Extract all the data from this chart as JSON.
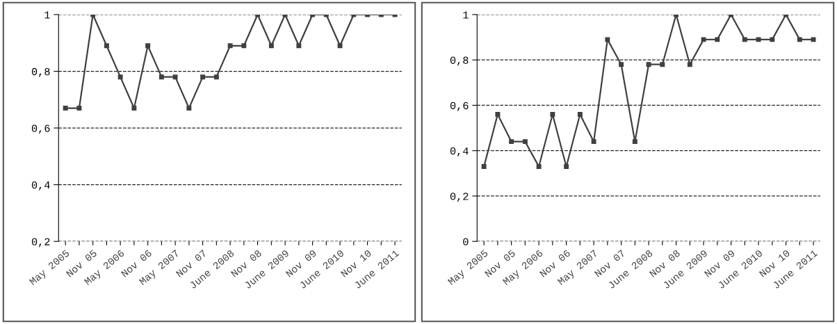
{
  "chart_data": [
    {
      "type": "line",
      "categories": [
        "May 2005",
        null,
        "Nov 05",
        null,
        "May 2006",
        null,
        "Nov 06",
        null,
        "May 2007",
        null,
        "Nov 07",
        null,
        "June 2008",
        null,
        "Nov 08",
        null,
        "June 2009",
        null,
        "Nov 09",
        null,
        "June 2010",
        null,
        "Nov 10",
        null,
        "June 2011"
      ],
      "series": [
        {
          "color": "#404040",
          "values": [
            0.67,
            0.67,
            1,
            0.89,
            0.78,
            0.67,
            0.89,
            0.78,
            0.78,
            0.67,
            0.78,
            0.78,
            0.89,
            0.89,
            1,
            0.89,
            1,
            0.89,
            1,
            1,
            0.89,
            1,
            1,
            1,
            1
          ]
        }
      ],
      "ylim": [
        0.2,
        1
      ],
      "yticks": [
        {
          "value": 0.2,
          "label": "0,2"
        },
        {
          "value": 0.4,
          "label": "0,4"
        },
        {
          "value": 0.6,
          "label": "0,6"
        },
        {
          "value": 0.8,
          "label": "0,8"
        },
        {
          "value": 1,
          "label": "1"
        }
      ],
      "grid": "y",
      "marker": "square",
      "line_style": "solid"
    },
    {
      "type": "line",
      "categories": [
        "May 2005",
        null,
        "Nov 05",
        null,
        "May 2006",
        null,
        "Nov 06",
        null,
        "May 2007",
        null,
        "Nov 07",
        null,
        "June 2008",
        null,
        "Nov 08",
        null,
        "June 2009",
        null,
        "Nov 09",
        null,
        "June 2010",
        null,
        "Nov 10",
        null,
        "June 2011"
      ],
      "series": [
        {
          "color": "#404040",
          "values": [
            0.33,
            0.56,
            0.44,
            0.44,
            0.33,
            0.56,
            0.33,
            0.56,
            0.44,
            0.89,
            0.78,
            0.44,
            0.78,
            0.78,
            1,
            0.78,
            0.89,
            0.89,
            1,
            0.89,
            0.89,
            0.89,
            1,
            0.89,
            0.89
          ]
        }
      ],
      "ylim": [
        0,
        1
      ],
      "yticks": [
        {
          "value": 0,
          "label": "0"
        },
        {
          "value": 0.2,
          "label": "0,2"
        },
        {
          "value": 0.4,
          "label": "0,4"
        },
        {
          "value": 0.6,
          "label": "0,6"
        },
        {
          "value": 0.8,
          "label": "0,8"
        },
        {
          "value": 1,
          "label": "1"
        }
      ],
      "grid": "y",
      "marker": "square",
      "line_style": "solid"
    }
  ]
}
